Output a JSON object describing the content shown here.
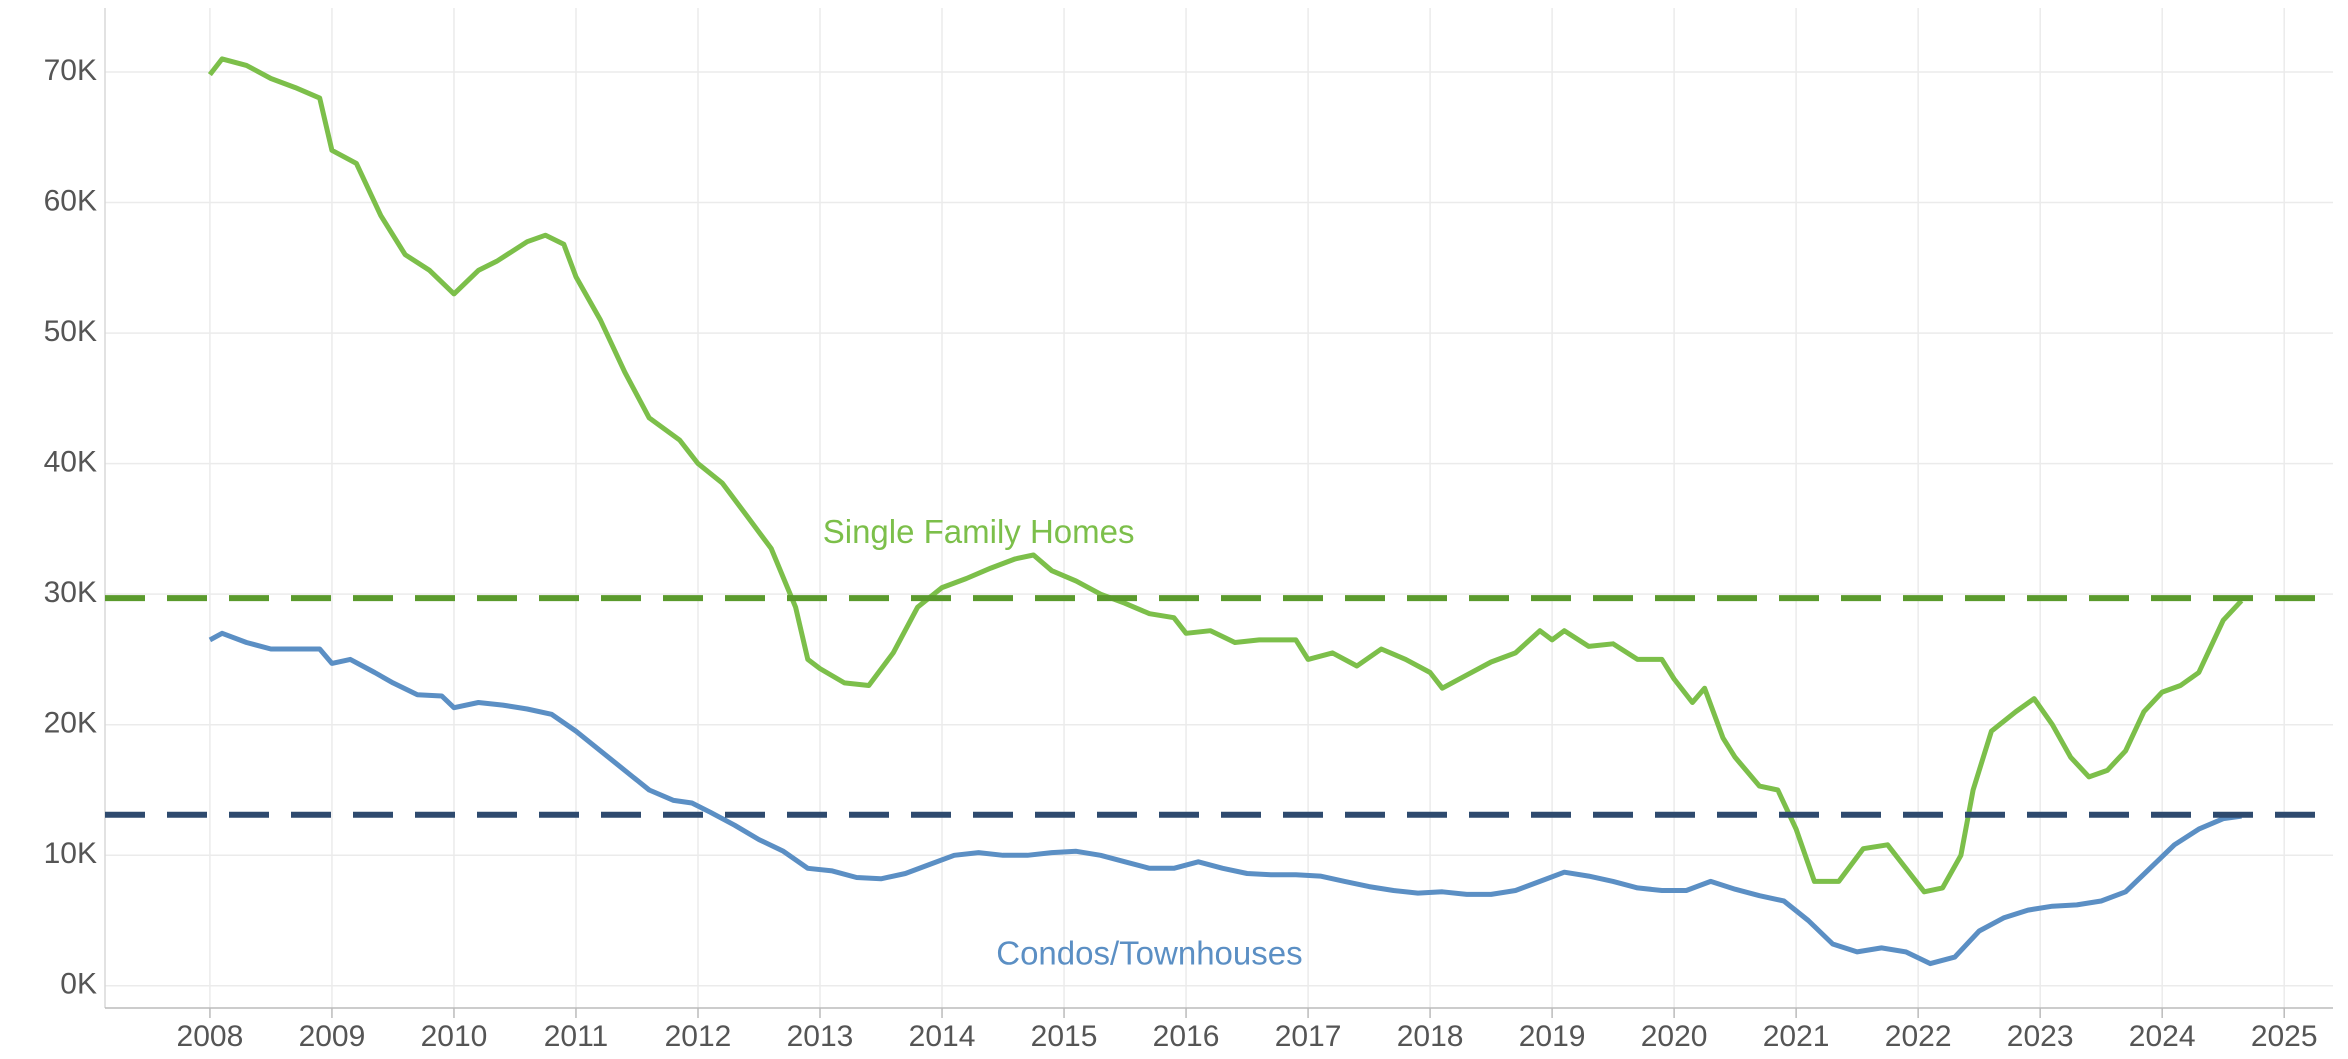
{
  "chart_data": {
    "type": "line",
    "xlim": [
      2007.14,
      2025.4
    ],
    "xticks": [
      2008,
      2009,
      2010,
      2011,
      2012,
      2013,
      2014,
      2015,
      2016,
      2017,
      2018,
      2019,
      2020,
      2021,
      2022,
      2023,
      2024,
      2025
    ],
    "ylim": [
      -1700,
      74900
    ],
    "yticks": [
      {
        "value": 0,
        "label": "0K"
      },
      {
        "value": 10000,
        "label": "10K"
      },
      {
        "value": 20000,
        "label": "20K"
      },
      {
        "value": 30000,
        "label": "30K"
      },
      {
        "value": 40000,
        "label": "40K"
      },
      {
        "value": 50000,
        "label": "50K"
      },
      {
        "value": 60000,
        "label": "60K"
      },
      {
        "value": 70000,
        "label": "70K"
      }
    ],
    "grid": true,
    "series": [
      {
        "name": "Single Family Homes",
        "color": "#7cbf4a",
        "x": [
          2008.0,
          2008.1,
          2008.3,
          2008.5,
          2008.7,
          2008.9,
          2009.0,
          2009.2,
          2009.4,
          2009.6,
          2009.8,
          2010.0,
          2010.2,
          2010.35,
          2010.6,
          2010.75,
          2010.9,
          2011.0,
          2011.2,
          2011.4,
          2011.6,
          2011.85,
          2012.0,
          2012.2,
          2012.4,
          2012.6,
          2012.8,
          2012.9,
          2013.0,
          2013.2,
          2013.4,
          2013.6,
          2013.8,
          2014.0,
          2014.2,
          2014.4,
          2014.6,
          2014.75,
          2014.9,
          2015.1,
          2015.3,
          2015.5,
          2015.7,
          2015.9,
          2016.0,
          2016.2,
          2016.4,
          2016.6,
          2016.9,
          2017.0,
          2017.2,
          2017.4,
          2017.6,
          2017.8,
          2018.0,
          2018.1,
          2018.3,
          2018.5,
          2018.7,
          2018.9,
          2019.0,
          2019.1,
          2019.3,
          2019.5,
          2019.7,
          2019.9,
          2020.0,
          2020.15,
          2020.25,
          2020.4,
          2020.5,
          2020.7,
          2020.85,
          2021.0,
          2021.15,
          2021.35,
          2021.55,
          2021.75,
          2021.9,
          2022.05,
          2022.2,
          2022.35,
          2022.45,
          2022.6,
          2022.8,
          2022.95,
          2023.1,
          2023.25,
          2023.4,
          2023.55,
          2023.7,
          2023.85,
          2024.0,
          2024.15,
          2024.3,
          2024.5,
          2024.65
        ],
        "values": [
          69800,
          71000,
          70500,
          69500,
          68800,
          68000,
          64000,
          63000,
          59000,
          56000,
          54800,
          53000,
          54800,
          55500,
          57000,
          57500,
          56800,
          54300,
          51000,
          47000,
          43500,
          41800,
          40000,
          38500,
          36000,
          33500,
          29000,
          25000,
          24300,
          23200,
          23000,
          25500,
          29000,
          30500,
          31200,
          32000,
          32700,
          33000,
          31800,
          31000,
          30000,
          29300,
          28500,
          28200,
          27000,
          27200,
          26300,
          26500,
          26500,
          25000,
          25500,
          24500,
          25800,
          25000,
          24000,
          22800,
          23800,
          24800,
          25500,
          27200,
          26500,
          27200,
          26000,
          26200,
          25000,
          25000,
          23500,
          21700,
          22800,
          19000,
          17500,
          15300,
          15000,
          12000,
          8000,
          8000,
          10500,
          10800,
          9000,
          7200,
          7500,
          10000,
          15000,
          19500,
          21000,
          22000,
          20000,
          17500,
          16000,
          16500,
          18000,
          21000,
          22500,
          23000,
          24000,
          28000,
          29500
        ]
      },
      {
        "name": "Condos/Townhouses",
        "color": "#5b8fc4",
        "x": [
          2008.0,
          2008.1,
          2008.3,
          2008.5,
          2008.7,
          2008.9,
          2009.0,
          2009.15,
          2009.35,
          2009.5,
          2009.7,
          2009.9,
          2010.0,
          2010.2,
          2010.4,
          2010.6,
          2010.8,
          2011.0,
          2011.2,
          2011.4,
          2011.6,
          2011.8,
          2011.95,
          2012.1,
          2012.3,
          2012.5,
          2012.7,
          2012.9,
          2013.1,
          2013.3,
          2013.5,
          2013.7,
          2013.9,
          2014.1,
          2014.3,
          2014.5,
          2014.7,
          2014.9,
          2015.1,
          2015.3,
          2015.5,
          2015.7,
          2015.9,
          2016.1,
          2016.3,
          2016.5,
          2016.7,
          2016.9,
          2017.1,
          2017.3,
          2017.5,
          2017.7,
          2017.9,
          2018.1,
          2018.3,
          2018.5,
          2018.7,
          2018.9,
          2019.1,
          2019.3,
          2019.5,
          2019.7,
          2019.9,
          2020.1,
          2020.3,
          2020.5,
          2020.7,
          2020.9,
          2021.1,
          2021.3,
          2021.5,
          2021.7,
          2021.9,
          2022.1,
          2022.3,
          2022.5,
          2022.7,
          2022.9,
          2023.1,
          2023.3,
          2023.5,
          2023.7,
          2023.9,
          2024.1,
          2024.3,
          2024.5,
          2024.65
        ],
        "values": [
          26500,
          27000,
          26300,
          25800,
          25800,
          25800,
          24700,
          25000,
          24000,
          23200,
          22300,
          22200,
          21300,
          21700,
          21500,
          21200,
          20800,
          19500,
          18000,
          16500,
          15000,
          14200,
          14000,
          13300,
          12300,
          11200,
          10300,
          9000,
          8800,
          8300,
          8200,
          8600,
          9300,
          10000,
          10200,
          10000,
          10000,
          10200,
          10300,
          10000,
          9500,
          9000,
          9000,
          9500,
          9000,
          8600,
          8500,
          8500,
          8400,
          8000,
          7600,
          7300,
          7100,
          7200,
          7000,
          7000,
          7300,
          8000,
          8700,
          8400,
          8000,
          7500,
          7300,
          7300,
          8000,
          7400,
          6900,
          6500,
          5000,
          3200,
          2600,
          2900,
          2600,
          1700,
          2200,
          4200,
          5200,
          5800,
          6100,
          6200,
          6500,
          7200,
          9000,
          10800,
          12000,
          12800,
          13000
        ]
      }
    ],
    "reference_lines": [
      {
        "value": 29700,
        "color": "#5a9a2c"
      },
      {
        "value": 13100,
        "color": "#2e4a6e"
      }
    ],
    "annotations": [
      {
        "text": "Single Family Homes",
        "x": 2014.3,
        "y": 34600,
        "color": "#7cbf4a"
      },
      {
        "text": "Condos/Townhouses",
        "x": 2015.7,
        "y": 2300,
        "color": "#5b8fc4"
      }
    ]
  }
}
